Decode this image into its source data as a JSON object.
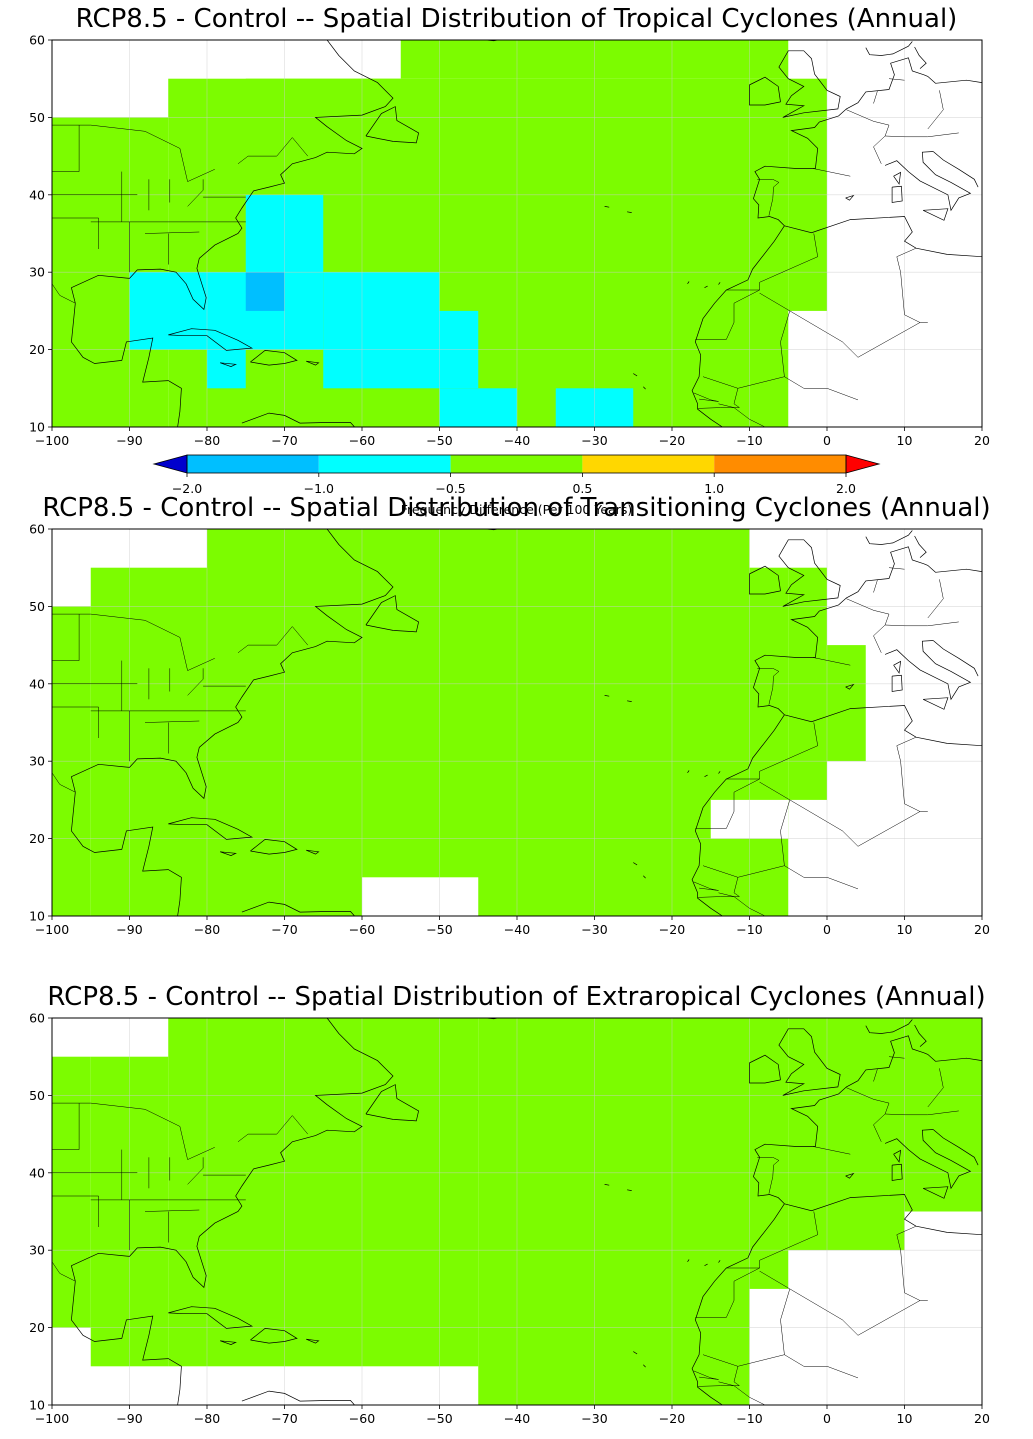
{
  "colors": {
    "land_green": "#7CFC00",
    "cyan": "#00FFFF",
    "deep_sky": "#00BFFF",
    "dark_blue": "#0000CD",
    "gold": "#FFD700",
    "orange": "#FF8C00",
    "red": "#FF0000",
    "coast": "#000000",
    "grid": "#cccccc"
  },
  "colorbar": {
    "label": "Frequency Difference (Per 100 Years)",
    "ticks": [
      "−2.0",
      "−1.0",
      "−0.5",
      "0.5",
      "1.0",
      "2.0"
    ],
    "bins": [
      {
        "from": -2.0,
        "to": -1.0,
        "color": "#00BFFF"
      },
      {
        "from": -1.0,
        "to": -0.5,
        "color": "#00FFFF"
      },
      {
        "from": -0.5,
        "to": 0.5,
        "color": "#7CFC00"
      },
      {
        "from": 0.5,
        "to": 1.0,
        "color": "#FFD700"
      },
      {
        "from": 1.0,
        "to": 2.0,
        "color": "#FF8C00"
      }
    ],
    "under_color": "#0000CD",
    "over_color": "#FF0000"
  },
  "chart_data": [
    {
      "type": "heatmap",
      "title": "RCP8.5 - Control -- Spatial Distribution of Tropical Cyclones (Annual)",
      "xlim": [
        -100,
        20
      ],
      "ylim": [
        10,
        60
      ],
      "xticks": [
        "−100",
        "−90",
        "−80",
        "−70",
        "−60",
        "−50",
        "−40",
        "−30",
        "−20",
        "−10",
        "0",
        "10",
        "20"
      ],
      "yticks": [
        "10",
        "20",
        "30",
        "40",
        "50",
        "60"
      ],
      "cells": [
        {
          "lon": [
            -100,
            -85
          ],
          "lat": [
            10,
            50
          ],
          "value": 0
        },
        {
          "lon": [
            -75,
            -55
          ],
          "lat": [
            50,
            55
          ],
          "value": 0
        },
        {
          "lon": [
            -55,
            -5
          ],
          "lat": [
            55,
            60
          ],
          "value": 0
        },
        {
          "lon": [
            -85,
            -5
          ],
          "lat": [
            10,
            55
          ],
          "value": 0
        },
        {
          "lon": [
            -5,
            0
          ],
          "lat": [
            25,
            55
          ],
          "value": 0
        },
        {
          "lon": [
            -90,
            -65
          ],
          "lat": [
            20,
            30
          ],
          "value": -0.8
        },
        {
          "lon": [
            -75,
            -65
          ],
          "lat": [
            30,
            40
          ],
          "value": -0.8
        },
        {
          "lon": [
            -65,
            -50
          ],
          "lat": [
            15,
            30
          ],
          "value": -0.8
        },
        {
          "lon": [
            -80,
            -75
          ],
          "lat": [
            15,
            20
          ],
          "value": -0.8
        },
        {
          "lon": [
            -50,
            -45
          ],
          "lat": [
            15,
            25
          ],
          "value": -0.8
        },
        {
          "lon": [
            -50,
            -40
          ],
          "lat": [
            10,
            15
          ],
          "value": -0.8
        },
        {
          "lon": [
            -35,
            -25
          ],
          "lat": [
            10,
            15
          ],
          "value": -0.8
        },
        {
          "lon": [
            -75,
            -70
          ],
          "lat": [
            25,
            30
          ],
          "value": -1.2
        }
      ]
    },
    {
      "type": "heatmap",
      "title": "RCP8.5 - Control -- Spatial Distribution of Transitioning Cyclones (Annual)",
      "xlim": [
        -100,
        20
      ],
      "ylim": [
        10,
        60
      ],
      "xticks": [
        "−100",
        "−90",
        "−80",
        "−70",
        "−60",
        "−50",
        "−40",
        "−30",
        "−20",
        "−10",
        "0",
        "10",
        "20"
      ],
      "yticks": [
        "10",
        "20",
        "30",
        "40",
        "50",
        "60"
      ],
      "cells": [
        {
          "lon": [
            -100,
            -95
          ],
          "lat": [
            10,
            50
          ],
          "value": 0
        },
        {
          "lon": [
            -95,
            -80
          ],
          "lat": [
            10,
            55
          ],
          "value": 0
        },
        {
          "lon": [
            -80,
            -10
          ],
          "lat": [
            10,
            60
          ],
          "value": 0
        },
        {
          "lon": [
            -10,
            -5
          ],
          "lat": [
            10,
            55
          ],
          "value": 0
        },
        {
          "lon": [
            -5,
            0
          ],
          "lat": [
            25,
            55
          ],
          "value": 0
        },
        {
          "lon": [
            0,
            5
          ],
          "lat": [
            30,
            45
          ],
          "value": 0
        }
      ],
      "gaps": [
        {
          "lon": [
            -60,
            -45
          ],
          "lat": [
            10,
            15
          ]
        },
        {
          "lon": [
            -15,
            -10
          ],
          "lat": [
            20,
            25
          ]
        },
        {
          "lon": [
            -10,
            -5
          ],
          "lat": [
            20,
            25
          ]
        }
      ]
    },
    {
      "type": "heatmap",
      "title": "RCP8.5 - Control -- Spatial Distribution of Extraropical Cyclones (Annual)",
      "xlim": [
        -100,
        20
      ],
      "ylim": [
        10,
        60
      ],
      "xticks": [
        "−100",
        "−90",
        "−80",
        "−70",
        "−60",
        "−50",
        "−40",
        "−30",
        "−20",
        "−10",
        "0",
        "10",
        "20"
      ],
      "yticks": [
        "10",
        "20",
        "30",
        "40",
        "50",
        "60"
      ],
      "cells": [
        {
          "lon": [
            -100,
            -95
          ],
          "lat": [
            20,
            55
          ],
          "value": 0
        },
        {
          "lon": [
            -95,
            -85
          ],
          "lat": [
            15,
            55
          ],
          "value": 0
        },
        {
          "lon": [
            -85,
            -45
          ],
          "lat": [
            15,
            60
          ],
          "value": 0
        },
        {
          "lon": [
            -45,
            -10
          ],
          "lat": [
            10,
            60
          ],
          "value": 0
        },
        {
          "lon": [
            -10,
            -5
          ],
          "lat": [
            25,
            60
          ],
          "value": 0
        },
        {
          "lon": [
            -5,
            10
          ],
          "lat": [
            30,
            60
          ],
          "value": 0
        },
        {
          "lon": [
            10,
            20
          ],
          "lat": [
            35,
            60
          ],
          "value": 0
        }
      ]
    }
  ]
}
